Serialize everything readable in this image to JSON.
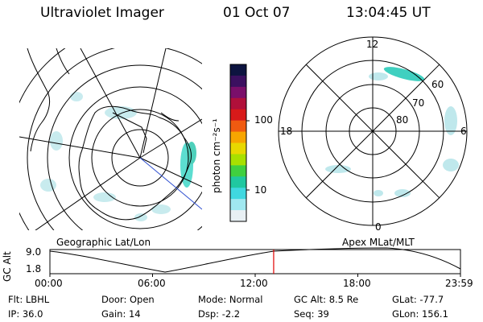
{
  "header": {
    "instrument": "Ultraviolet Imager",
    "date": "01 Oct 07",
    "time": "13:04:45 UT"
  },
  "colorbar": {
    "units": "photon cm⁻²s⁻¹",
    "ticks": [
      "100",
      "10"
    ],
    "colors": [
      "#0d1440",
      "#3b1060",
      "#7a0f6a",
      "#b0103a",
      "#d81a1a",
      "#f05a10",
      "#f7a500",
      "#e8d800",
      "#a8e000",
      "#40d040",
      "#20c8a0",
      "#40d8e0",
      "#a0e8f0",
      "#e8f0f4"
    ]
  },
  "left_map": {
    "label": "Geographic Lat/Lon"
  },
  "right_map": {
    "label": "Apex MLat/MLT",
    "mlt_labels": {
      "top": "12",
      "left": "18",
      "right": "6",
      "bottom": "0"
    },
    "mlat_labels": [
      "60",
      "70",
      "80"
    ]
  },
  "timeline": {
    "ylabel": "GC Alt",
    "y_ticks": [
      "9.0",
      "1.8"
    ],
    "x_ticks": [
      "00:00",
      "06:00",
      "12:00",
      "18:00",
      "23:59"
    ],
    "current_time_fraction": 0.545,
    "marker_color": "#e00000"
  },
  "status": {
    "row1": [
      {
        "label": "Flt:",
        "value": "LBHL"
      },
      {
        "label": "Door:",
        "value": "Open"
      },
      {
        "label": "Mode:",
        "value": "Normal"
      },
      {
        "label": "GC Alt:",
        "value": "8.5 Re"
      },
      {
        "label": "GLat:",
        "value": "-77.7"
      }
    ],
    "row2": [
      {
        "label": "IP:",
        "value": "36.0"
      },
      {
        "label": "Gain:",
        "value": "14"
      },
      {
        "label": "Dsp:",
        "value": "-2.2"
      },
      {
        "label": "Seq:",
        "value": "39"
      },
      {
        "label": "GLon:",
        "value": "156.1"
      }
    ]
  }
}
